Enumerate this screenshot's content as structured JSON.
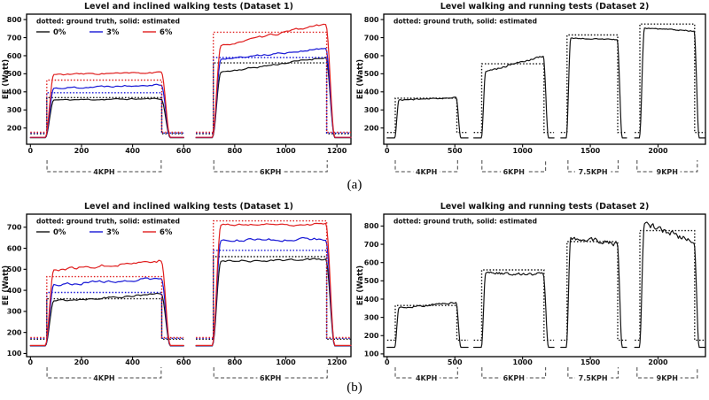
{
  "figure": {
    "label_a": "(a)",
    "label_b": "(b)"
  },
  "colors": {
    "black": "#141414",
    "blue": "#1717d6",
    "red": "#e01f1f",
    "axis": "#000000",
    "bracket": "#444444"
  },
  "chart_data": [
    {
      "id": "a1",
      "type": "line",
      "position": {
        "row": 0,
        "col": 0
      },
      "title": "Level and inclined walking tests (Dataset 1)",
      "note": "dotted: ground truth, solid: estimated",
      "ylabel": "EE (Watt)",
      "xlim": [
        -15,
        1255
      ],
      "ylim": [
        110,
        830
      ],
      "xticks": [
        0,
        200,
        400,
        600,
        800,
        1000,
        1200
      ],
      "yticks": [
        200,
        300,
        400,
        500,
        600,
        700,
        800
      ],
      "legend": [
        {
          "label": "0%",
          "color": "#141414"
        },
        {
          "label": "3%",
          "color": "#1717d6"
        },
        {
          "label": "6%",
          "color": "#e01f1f"
        }
      ],
      "brackets": [
        {
          "label": "4KPH",
          "x0": 65,
          "x1": 512
        },
        {
          "label": "6KPH",
          "x0": 718,
          "x1": 1162
        }
      ],
      "series": [
        {
          "name": "0%",
          "color": "#141414",
          "seed": 11,
          "trials": [
            {
              "x0": 0,
              "x1": 600,
              "rest": 146,
              "rise": [
                58,
                92
              ],
              "fall": [
                512,
                548
              ],
              "y0": 355,
              "y1": 362,
              "amp": 6,
              "gt": {
                "x0": 64,
                "x1": 514,
                "level": 368,
                "rest": 168
              }
            },
            {
              "x0": 648,
              "x1": 1255,
              "rest": 146,
              "rise": [
                712,
                746
              ],
              "fall": [
                1156,
                1192
              ],
              "y0": 508,
              "y1": 592,
              "amp": 8,
              "gt": {
                "x0": 716,
                "x1": 1160,
                "level": 560,
                "rest": 168
              }
            }
          ]
        },
        {
          "name": "3%",
          "color": "#1717d6",
          "seed": 22,
          "trials": [
            {
              "x0": 0,
              "x1": 600,
              "rest": 147,
              "rise": [
                58,
                92
              ],
              "fall": [
                512,
                548
              ],
              "y0": 420,
              "y1": 442,
              "amp": 8,
              "gt": {
                "x0": 64,
                "x1": 514,
                "level": 395,
                "rest": 172
              }
            },
            {
              "x0": 648,
              "x1": 1255,
              "rest": 147,
              "rise": [
                712,
                746
              ],
              "fall": [
                1156,
                1192
              ],
              "y0": 580,
              "y1": 640,
              "amp": 8,
              "gt": {
                "x0": 716,
                "x1": 1160,
                "level": 590,
                "rest": 172
              }
            }
          ]
        },
        {
          "name": "6%",
          "color": "#e01f1f",
          "seed": 33,
          "trials": [
            {
              "x0": 0,
              "x1": 600,
              "rest": 148,
              "rise": [
                58,
                92
              ],
              "fall": [
                512,
                548
              ],
              "y0": 496,
              "y1": 506,
              "amp": 7,
              "gt": {
                "x0": 64,
                "x1": 514,
                "level": 465,
                "rest": 176
              }
            },
            {
              "x0": 648,
              "x1": 1255,
              "rest": 148,
              "rise": [
                712,
                746
              ],
              "fall": [
                1156,
                1192
              ],
              "y0": 655,
              "y1": 778,
              "amp": 9,
              "gt": {
                "x0": 716,
                "x1": 1160,
                "level": 730,
                "rest": 176
              }
            }
          ]
        }
      ]
    },
    {
      "id": "a2",
      "type": "line",
      "position": {
        "row": 0,
        "col": 1
      },
      "title": "Level walking and running tests (Dataset 2)",
      "note": "dotted: ground truth, solid: estimated",
      "ylabel": "EE (Watt)",
      "xlim": [
        -25,
        2350
      ],
      "ylim": [
        110,
        830
      ],
      "xticks": [
        0,
        500,
        1000,
        1500,
        2000
      ],
      "yticks": [
        200,
        300,
        400,
        500,
        600,
        700,
        800
      ],
      "legend": [],
      "brackets": [
        {
          "label": "4KPH",
          "x0": 60,
          "x1": 520
        },
        {
          "label": "6KPH",
          "x0": 700,
          "x1": 1170
        },
        {
          "label": "7.5KPH",
          "x0": 1335,
          "x1": 1705
        },
        {
          "label": "9KPH",
          "x0": 1845,
          "x1": 2290
        }
      ],
      "series": [
        {
          "name": "EE",
          "color": "#141414",
          "seed": 44,
          "trials": [
            {
              "x0": 0,
              "x1": 597,
              "rest": 145,
              "rise": [
                55,
                88
              ],
              "fall": [
                508,
                545
              ],
              "y0": 355,
              "y1": 368,
              "amp": 5,
              "gt": {
                "x0": 60,
                "x1": 515,
                "level": 365,
                "rest": 175
              }
            },
            {
              "x0": 640,
              "x1": 1232,
              "rest": 145,
              "rise": [
                695,
                728
              ],
              "fall": [
                1152,
                1192
              ],
              "y0": 512,
              "y1": 598,
              "amp": 8,
              "gt": {
                "x0": 698,
                "x1": 1158,
                "level": 555,
                "rest": 175
              }
            },
            {
              "x0": 1282,
              "x1": 1768,
              "rest": 145,
              "rise": [
                1322,
                1356
              ],
              "fall": [
                1698,
                1736
              ],
              "y0": 697,
              "y1": 689,
              "amp": 4,
              "gt": {
                "x0": 1328,
                "x1": 1702,
                "level": 715,
                "rest": 175
              }
            },
            {
              "x0": 1828,
              "x1": 2350,
              "rest": 145,
              "rise": [
                1862,
                1900
              ],
              "fall": [
                2266,
                2304
              ],
              "y0": 753,
              "y1": 737,
              "amp": 5,
              "gt": {
                "x0": 1866,
                "x1": 2270,
                "level": 775,
                "rest": 175
              }
            }
          ]
        }
      ]
    },
    {
      "id": "b1",
      "type": "line",
      "position": {
        "row": 1,
        "col": 0
      },
      "title": "Level and inclined walking tests (Dataset 1)",
      "note": "dotted: ground truth, solid: estimated",
      "ylabel": "EE (Watt)",
      "xlim": [
        -15,
        1255
      ],
      "ylim": [
        85,
        762
      ],
      "xticks": [
        0,
        200,
        400,
        600,
        800,
        1000,
        1200
      ],
      "yticks": [
        100,
        200,
        300,
        400,
        500,
        600,
        700
      ],
      "legend": [
        {
          "label": "0%",
          "color": "#141414"
        },
        {
          "label": "3%",
          "color": "#1717d6"
        },
        {
          "label": "6%",
          "color": "#e01f1f"
        }
      ],
      "brackets": [
        {
          "label": "4KPH",
          "x0": 65,
          "x1": 512
        },
        {
          "label": "6KPH",
          "x0": 718,
          "x1": 1162
        }
      ],
      "series": [
        {
          "name": "0%",
          "color": "#141414",
          "seed": 55,
          "trials": [
            {
              "x0": 0,
              "x1": 600,
              "rest": 136,
              "rise": [
                58,
                92
              ],
              "fall": [
                512,
                548
              ],
              "y0": 350,
              "y1": 383,
              "amp": 8,
              "gt": {
                "x0": 64,
                "x1": 514,
                "level": 360,
                "rest": 168
              }
            },
            {
              "x0": 648,
              "x1": 1255,
              "rest": 136,
              "rise": [
                712,
                746
              ],
              "fall": [
                1156,
                1192
              ],
              "y0": 538,
              "y1": 548,
              "amp": 8,
              "gt": {
                "x0": 716,
                "x1": 1160,
                "level": 560,
                "rest": 168
              }
            }
          ]
        },
        {
          "name": "3%",
          "color": "#1717d6",
          "seed": 66,
          "trials": [
            {
              "x0": 0,
              "x1": 600,
              "rest": 137,
              "rise": [
                58,
                92
              ],
              "fall": [
                512,
                548
              ],
              "y0": 428,
              "y1": 456,
              "amp": 10,
              "gt": {
                "x0": 64,
                "x1": 514,
                "level": 390,
                "rest": 172
              }
            },
            {
              "x0": 648,
              "x1": 1255,
              "rest": 137,
              "rise": [
                712,
                746
              ],
              "fall": [
                1156,
                1192
              ],
              "y0": 636,
              "y1": 646,
              "amp": 11,
              "gt": {
                "x0": 716,
                "x1": 1160,
                "level": 590,
                "rest": 172
              }
            }
          ]
        },
        {
          "name": "6%",
          "color": "#e01f1f",
          "seed": 77,
          "trials": [
            {
              "x0": 0,
              "x1": 600,
              "rest": 138,
              "rise": [
                58,
                92
              ],
              "fall": [
                512,
                548
              ],
              "y0": 497,
              "y1": 542,
              "amp": 11,
              "gt": {
                "x0": 64,
                "x1": 514,
                "level": 465,
                "rest": 176
              }
            },
            {
              "x0": 648,
              "x1": 1255,
              "rest": 138,
              "rise": [
                712,
                746
              ],
              "fall": [
                1156,
                1192
              ],
              "y0": 710,
              "y1": 716,
              "amp": 10,
              "gt": {
                "x0": 716,
                "x1": 1160,
                "level": 730,
                "rest": 176
              }
            }
          ]
        }
      ]
    },
    {
      "id": "b2",
      "type": "line",
      "position": {
        "row": 1,
        "col": 1
      },
      "title": "Level walking and running tests (Dataset 2)",
      "note": "dotted: ground truth, solid: estimated",
      "ylabel": "EE (Watt)",
      "xlim": [
        -25,
        2350
      ],
      "ylim": [
        85,
        865
      ],
      "xticks": [
        0,
        500,
        1000,
        1500,
        2000
      ],
      "yticks": [
        100,
        200,
        300,
        400,
        500,
        600,
        700,
        800
      ],
      "legend": [],
      "brackets": [
        {
          "label": "4KPH",
          "x0": 60,
          "x1": 520
        },
        {
          "label": "6KPH",
          "x0": 700,
          "x1": 1170
        },
        {
          "label": "7.5KPH",
          "x0": 1335,
          "x1": 1705
        },
        {
          "label": "9KPH",
          "x0": 1845,
          "x1": 2290
        }
      ],
      "series": [
        {
          "name": "EE",
          "color": "#141414",
          "seed": 88,
          "trials": [
            {
              "x0": 0,
              "x1": 597,
              "rest": 136,
              "rise": [
                55,
                88
              ],
              "fall": [
                508,
                545
              ],
              "y0": 352,
              "y1": 381,
              "amp": 9,
              "gt": {
                "x0": 60,
                "x1": 515,
                "level": 365,
                "rest": 175
              }
            },
            {
              "x0": 640,
              "x1": 1232,
              "rest": 136,
              "rise": [
                695,
                728
              ],
              "fall": [
                1152,
                1192
              ],
              "y0": 542,
              "y1": 536,
              "amp": 12,
              "gt": {
                "x0": 698,
                "x1": 1158,
                "level": 560,
                "rest": 175
              }
            },
            {
              "x0": 1282,
              "x1": 1768,
              "rest": 136,
              "rise": [
                1322,
                1356
              ],
              "fall": [
                1698,
                1736
              ],
              "y0": 737,
              "y1": 702,
              "amp": 22,
              "gt": {
                "x0": 1328,
                "x1": 1702,
                "level": 715,
                "rest": 175
              }
            },
            {
              "x0": 1828,
              "x1": 2350,
              "rest": 136,
              "rise": [
                1862,
                1900
              ],
              "fall": [
                2266,
                2304
              ],
              "y0": 812,
              "y1": 716,
              "amp": 26,
              "gt": {
                "x0": 1866,
                "x1": 2270,
                "level": 775,
                "rest": 175
              }
            }
          ]
        }
      ]
    }
  ]
}
